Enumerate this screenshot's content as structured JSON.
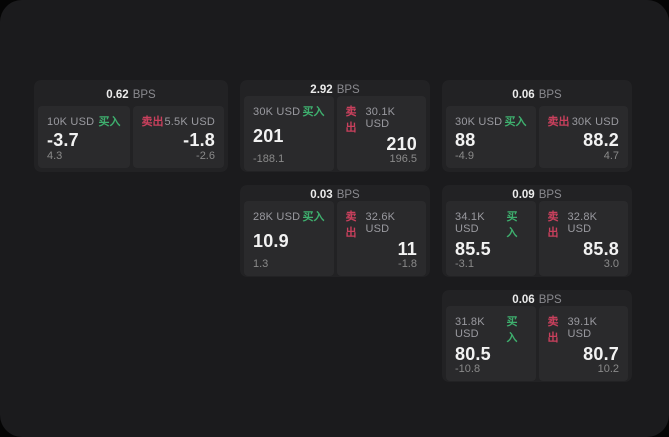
{
  "labels": {
    "bps_suffix": "BPS",
    "buy": "买入",
    "sell": "卖出"
  },
  "colors": {
    "buy_green": "#3eaf6e",
    "sell_red": "#c9405d",
    "panel_bg": "#1b1b1d",
    "card_bg": "#222224",
    "tile_bg": "#2a2a2c"
  },
  "cards": [
    {
      "bps": "0.62",
      "buy": {
        "size": "10K USD",
        "value": "-3.7",
        "delta": "4.3"
      },
      "sell": {
        "size": "5.5K USD",
        "value": "-1.8",
        "delta": "-2.6"
      }
    },
    {
      "bps": "2.92",
      "buy": {
        "size": "30K USD",
        "value": "201",
        "delta": "-188.1"
      },
      "sell": {
        "size": "30.1K USD",
        "value": "210",
        "delta": "196.5"
      }
    },
    {
      "bps": "0.06",
      "buy": {
        "size": "30K USD",
        "value": "88",
        "delta": "-4.9"
      },
      "sell": {
        "size": "30K USD",
        "value": "88.2",
        "delta": "4.7"
      }
    },
    {
      "bps": "0.03",
      "buy": {
        "size": "28K USD",
        "value": "10.9",
        "delta": "1.3"
      },
      "sell": {
        "size": "32.6K USD",
        "value": "11",
        "delta": "-1.8"
      }
    },
    {
      "bps": "0.09",
      "buy": {
        "size": "34.1K USD",
        "value": "85.5",
        "delta": "-3.1"
      },
      "sell": {
        "size": "32.8K USD",
        "value": "85.8",
        "delta": "3.0"
      }
    },
    {
      "bps": "0.06",
      "buy": {
        "size": "31.8K USD",
        "value": "80.5",
        "delta": "-10.8"
      },
      "sell": {
        "size": "39.1K USD",
        "value": "80.7",
        "delta": "10.2"
      }
    }
  ]
}
